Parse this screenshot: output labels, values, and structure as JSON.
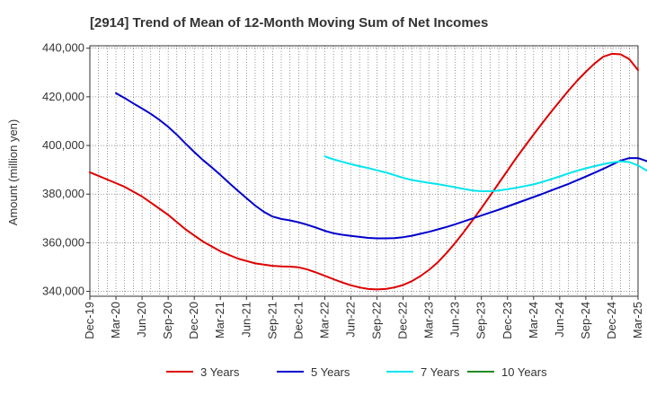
{
  "chart_data": {
    "type": "line",
    "title": "[2914]  Trend of Mean of 12-Month Moving Sum of Net Incomes",
    "xlabel": "",
    "ylabel": "Amount (million yen)",
    "ylim": [
      338000,
      441000
    ],
    "yticks": [
      340000,
      360000,
      380000,
      400000,
      420000,
      440000
    ],
    "ytick_labels": [
      "340,000",
      "360,000",
      "380,000",
      "400,000",
      "420,000",
      "440,000"
    ],
    "x_start": "Dec-19",
    "x_end": "Mar-25",
    "x_labels": [
      "Dec-19",
      "Mar-20",
      "Jun-20",
      "Sep-20",
      "Dec-20",
      "Mar-21",
      "Jun-21",
      "Sep-21",
      "Dec-21",
      "Mar-22",
      "Jun-22",
      "Sep-22",
      "Dec-22",
      "Mar-23",
      "Jun-23",
      "Sep-23",
      "Dec-23",
      "Mar-24",
      "Jun-24",
      "Sep-24",
      "Dec-24",
      "Mar-25"
    ],
    "grid": true,
    "legend_position": "bottom",
    "series": [
      {
        "name": "3 Years",
        "color": "#dd0000",
        "start": "Dec-19",
        "values": [
          389000,
          387500,
          386000,
          384500,
          383000,
          381000,
          379000,
          376500,
          374000,
          371500,
          368500,
          365500,
          363000,
          360500,
          358500,
          356500,
          355000,
          353500,
          352500,
          351500,
          351000,
          350500,
          350300,
          350200,
          349900,
          349000,
          347800,
          346400,
          345000,
          343700,
          342500,
          341600,
          341000,
          340800,
          341000,
          341600,
          342600,
          344200,
          346300,
          348900,
          352000,
          355800,
          360000,
          364500,
          369300,
          374200,
          379300,
          384500,
          389700,
          394800,
          399700,
          404500,
          409200,
          413800,
          418200,
          422500,
          426600,
          430300,
          433700,
          436500,
          437700,
          437500,
          435500,
          431000
        ]
      },
      {
        "name": "5 Years",
        "color": "#0000cc",
        "start": "Mar-20",
        "values": [
          421500,
          419500,
          417300,
          415200,
          413000,
          410500,
          407700,
          404400,
          400800,
          397300,
          394000,
          391000,
          387900,
          384600,
          381400,
          378300,
          375300,
          372700,
          370800,
          369800,
          369200,
          368400,
          367400,
          366200,
          364900,
          363900,
          363300,
          362800,
          362400,
          362000,
          361800,
          361800,
          361900,
          362300,
          362900,
          363700,
          364500,
          365500,
          366500,
          367600,
          368800,
          370000,
          371200,
          372400,
          373600,
          374900,
          376200,
          377500,
          378800,
          380100,
          381500,
          382800,
          384200,
          385700,
          387200,
          388800,
          390400,
          392100,
          393800,
          394800,
          394800,
          393600,
          391000
        ]
      },
      {
        "name": "7 Years",
        "color": "#00e5ee",
        "start": "Mar-22",
        "values": [
          395500,
          394300,
          393300,
          392300,
          391500,
          390700,
          389800,
          388900,
          387800,
          386700,
          385800,
          385200,
          384600,
          384100,
          383500,
          382800,
          382100,
          381500,
          381200,
          381200,
          381500,
          382000,
          382600,
          383300,
          384000,
          385000,
          386100,
          387300,
          388500,
          389600,
          390600,
          391500,
          392300,
          393000,
          393500,
          393200,
          391800,
          389700
        ]
      },
      {
        "name": "10 Years",
        "color": "#228b22",
        "start": "Dec-24",
        "values": []
      }
    ]
  }
}
